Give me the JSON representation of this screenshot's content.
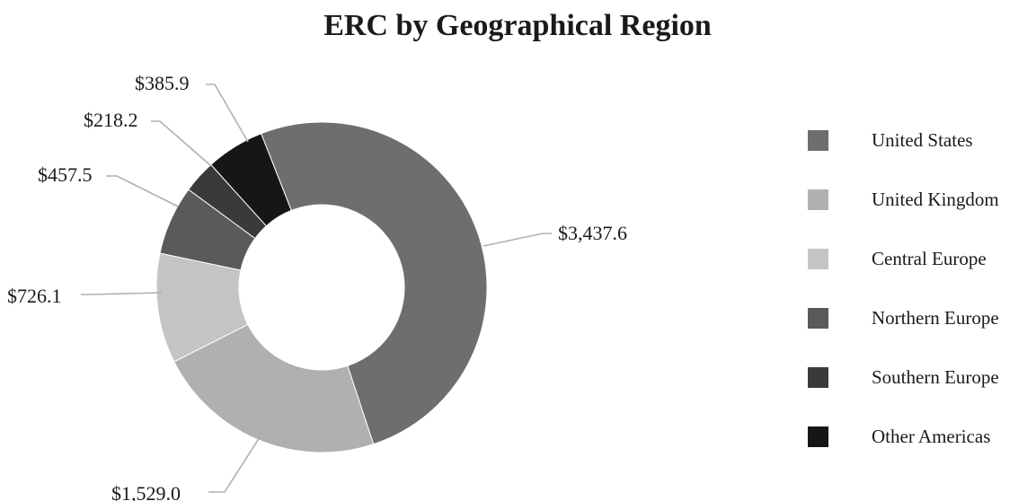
{
  "chart_data": {
    "type": "pie",
    "title": "ERC by Geographical Region",
    "variant": "donut",
    "legend_position": "right",
    "slices": [
      {
        "label": "United States",
        "value": 3437.6,
        "display": "$3,437.6",
        "color": "#6e6e6e"
      },
      {
        "label": "United Kingdom",
        "value": 1529.0,
        "display": "$1,529.0",
        "color": "#b0b0b0"
      },
      {
        "label": "Central Europe",
        "value": 726.1,
        "display": "$726.1",
        "color": "#c4c4c4"
      },
      {
        "label": "Northern Europe",
        "value": 457.5,
        "display": "$457.5",
        "color": "#5a5a5a"
      },
      {
        "label": "Southern Europe",
        "value": 218.2,
        "display": "$218.2",
        "color": "#3a3a3a"
      },
      {
        "label": "Other Americas",
        "value": 385.9,
        "display": "$385.9",
        "color": "#161616"
      }
    ]
  }
}
